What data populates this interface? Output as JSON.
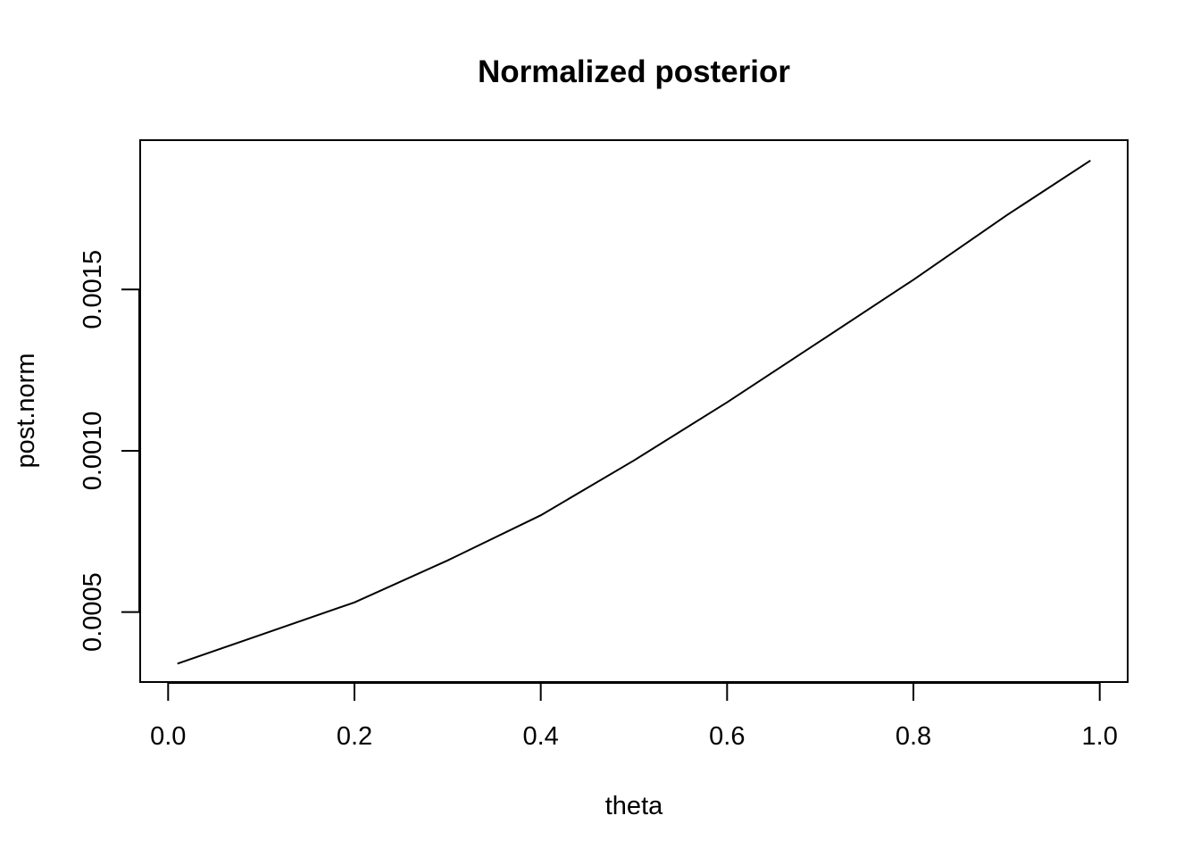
{
  "chart_data": {
    "type": "line",
    "title": "Normalized posterior",
    "xlabel": "theta",
    "ylabel": "post.norm",
    "xlim": [
      -0.03,
      1.03
    ],
    "ylim": [
      0.000283,
      0.001963
    ],
    "x_ticks": [
      0.0,
      0.2,
      0.4,
      0.6,
      0.8,
      1.0
    ],
    "x_tick_labels": [
      "0.0",
      "0.2",
      "0.4",
      "0.6",
      "0.8",
      "1.0"
    ],
    "y_ticks": [
      0.0005,
      0.001,
      0.0015
    ],
    "y_tick_labels": [
      "0.0005",
      "0.0010",
      "0.0015"
    ],
    "grid": false,
    "legend": "none",
    "series": [
      {
        "color": "#000000",
        "x": [
          0.01,
          0.1,
          0.2,
          0.3,
          0.4,
          0.5,
          0.6,
          0.7,
          0.8,
          0.9,
          0.99
        ],
        "y": [
          0.00034,
          0.00043,
          0.00053,
          0.00066,
          0.0008,
          0.00097,
          0.00115,
          0.00134,
          0.00153,
          0.00173,
          0.0019
        ]
      }
    ]
  }
}
